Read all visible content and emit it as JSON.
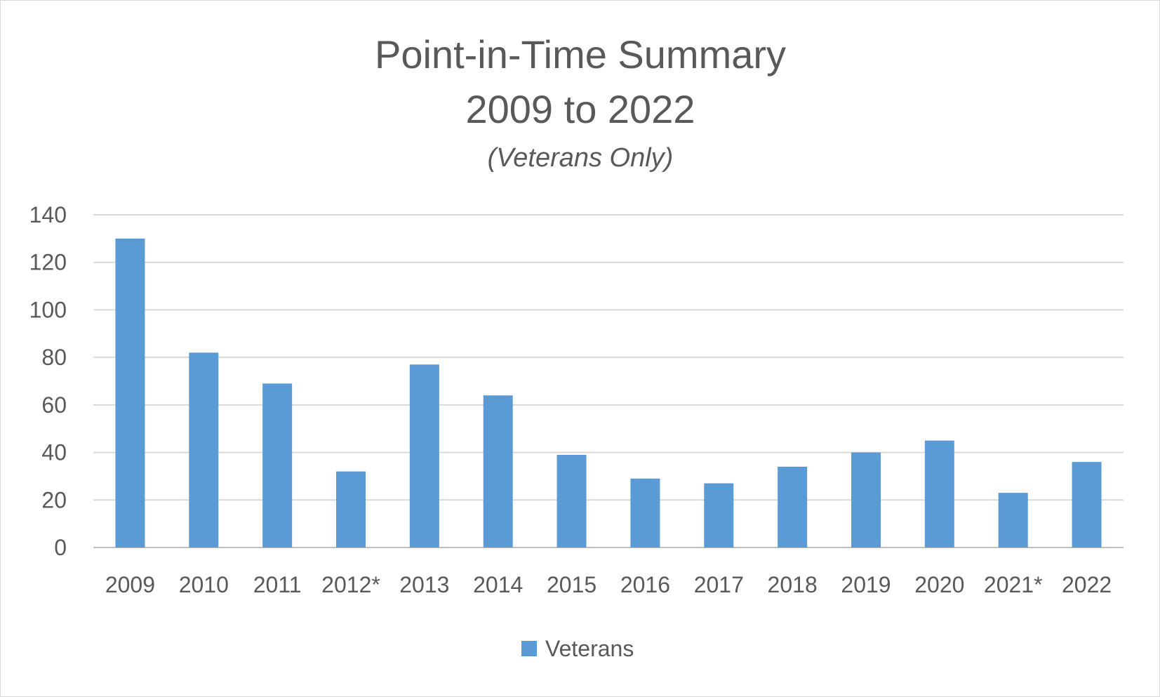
{
  "chart_data": {
    "type": "bar",
    "title": "Point-in-Time Summary",
    "title_line2": "2009 to 2022",
    "subtitle": "(Veterans Only)",
    "xlabel": "",
    "ylabel": "",
    "categories": [
      "2009",
      "2010",
      "2011",
      "2012*",
      "2013",
      "2014",
      "2015",
      "2016",
      "2017",
      "2018",
      "2019",
      "2020",
      "2021*",
      "2022"
    ],
    "series": [
      {
        "name": "Veterans",
        "color": "#5b9bd5",
        "values": [
          130,
          82,
          69,
          32,
          77,
          64,
          39,
          29,
          27,
          34,
          40,
          45,
          23,
          36
        ]
      }
    ],
    "ylim": [
      0,
      140
    ],
    "yticks": [
      "0",
      "20",
      "40",
      "60",
      "80",
      "100",
      "120",
      "140"
    ],
    "grid": true,
    "legend_position": "bottom"
  }
}
